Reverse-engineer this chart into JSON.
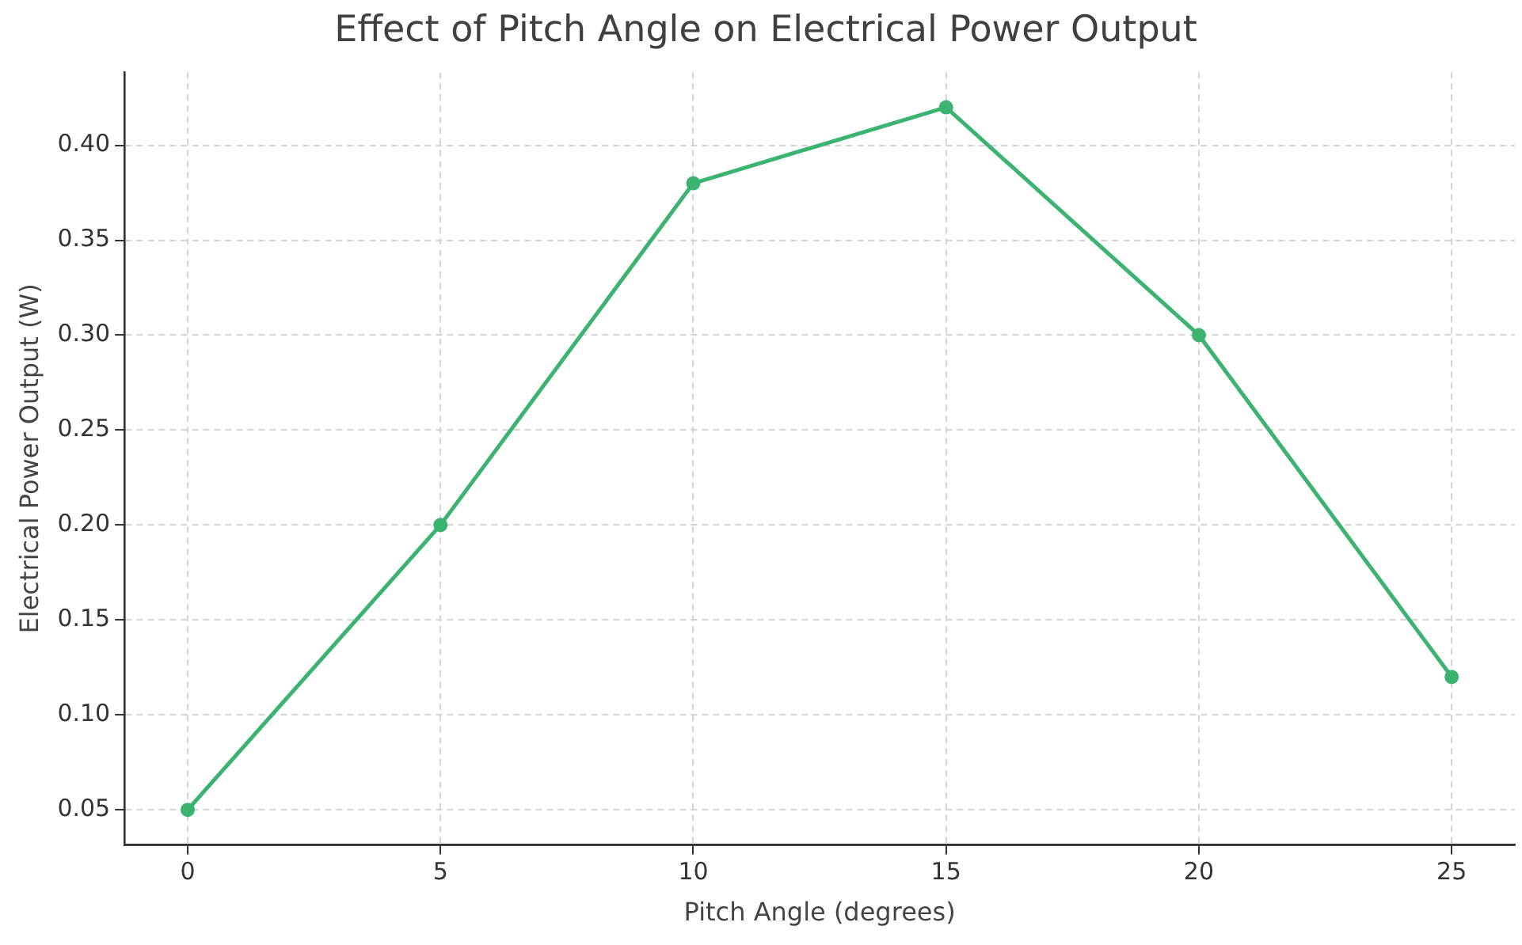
{
  "chart_data": {
    "type": "line",
    "title": "Effect of Pitch Angle on Electrical Power Output",
    "xlabel": "Pitch Angle (degrees)",
    "ylabel": "Electrical Power Output (W)",
    "x": [
      0,
      5,
      10,
      15,
      20,
      25
    ],
    "series": [
      {
        "color": "#3cb371",
        "values": [
          0.05,
          0.2,
          0.38,
          0.42,
          0.3,
          0.12
        ]
      }
    ],
    "xlim": [
      -1.25,
      26.25
    ],
    "xticks": [
      0,
      5,
      10,
      15,
      20,
      25
    ],
    "ylim": [
      0.0315,
      0.4385
    ],
    "yticks": [
      {
        "value": 0.05,
        "label": "0.05"
      },
      {
        "value": 0.1,
        "label": "0.10"
      },
      {
        "value": 0.15,
        "label": "0.15"
      },
      {
        "value": 0.2,
        "label": "0.20"
      },
      {
        "value": 0.25,
        "label": "0.25"
      },
      {
        "value": 0.3,
        "label": "0.30"
      },
      {
        "value": 0.35,
        "label": "0.35"
      },
      {
        "value": 0.4,
        "label": "0.40"
      }
    ],
    "grid": true,
    "marker": "circle",
    "line_style": "solid",
    "legend": false
  }
}
